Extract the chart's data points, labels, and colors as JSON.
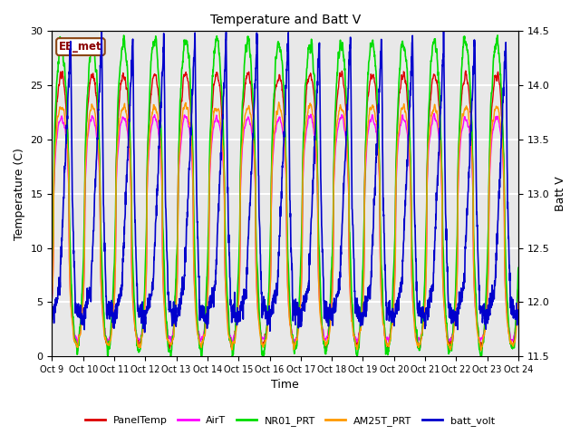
{
  "title": "Temperature and Batt V",
  "xlabel": "Time",
  "ylabel_left": "Temperature (C)",
  "ylabel_right": "Batt V",
  "annotation": "EE_met",
  "ylim_left": [
    0,
    30
  ],
  "ylim_right": [
    11.5,
    14.5
  ],
  "x_start": 9,
  "x_end": 24,
  "x_ticks": [
    9,
    10,
    11,
    12,
    13,
    14,
    15,
    16,
    17,
    18,
    19,
    20,
    21,
    22,
    23,
    24
  ],
  "x_tick_labels": [
    "Oct 9",
    "Oct 10",
    "Oct 11",
    "Oct 12",
    "Oct 13",
    "Oct 14",
    "Oct 15",
    "Oct 16",
    "Oct 17",
    "Oct 18",
    "Oct 19",
    "Oct 20",
    "Oct 21",
    "Oct 22",
    "Oct 23",
    "Oct 24"
  ],
  "bg_color": "#e8e8e8",
  "grid_color": "white",
  "yticks_left": [
    0,
    5,
    10,
    15,
    20,
    25,
    30
  ],
  "yticks_right": [
    11.5,
    12.0,
    12.5,
    13.0,
    13.5,
    14.0,
    14.5
  ],
  "series": {
    "PanelTemp": {
      "color": "#dd0000",
      "lw": 1.0
    },
    "AirT": {
      "color": "#ff00ff",
      "lw": 1.0
    },
    "NR01_PRT": {
      "color": "#00dd00",
      "lw": 1.2
    },
    "AM25T_PRT": {
      "color": "#ff9900",
      "lw": 1.0
    },
    "batt_volt": {
      "color": "#0000cc",
      "lw": 1.2
    }
  },
  "legend_colors": {
    "PanelTemp": "#dd0000",
    "AirT": "#ff00ff",
    "NR01_PRT": "#00dd00",
    "AM25T_PRT": "#ff9900",
    "batt_volt": "#0000cc"
  },
  "figsize": [
    6.4,
    4.8
  ],
  "dpi": 100
}
